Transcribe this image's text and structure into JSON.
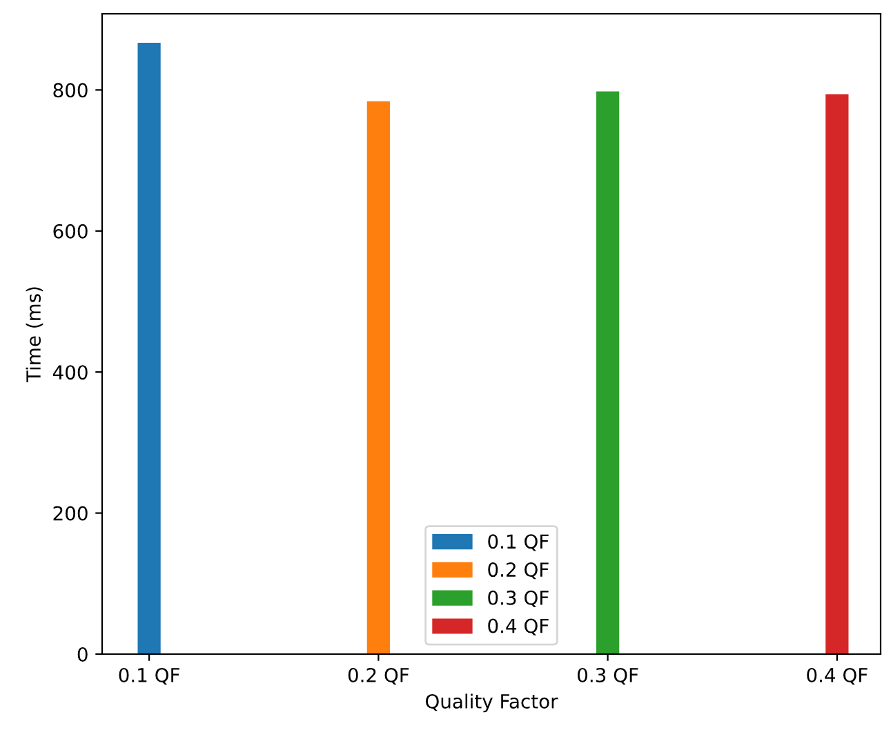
{
  "chart_data": {
    "type": "bar",
    "categories": [
      "0.1 QF",
      "0.2 QF",
      "0.3 QF",
      "0.4 QF"
    ],
    "xlabel": "Quality Factor",
    "ylabel": "Time (ms)",
    "ylim": [
      0,
      908
    ],
    "yticks": [
      0,
      200,
      400,
      600,
      800
    ],
    "series": [
      {
        "name": "0.1 QF",
        "color": "#1f77b4",
        "values": [
          867,
          null,
          null,
          null
        ]
      },
      {
        "name": "0.2 QF",
        "color": "#ff7f0e",
        "values": [
          null,
          784,
          null,
          null
        ]
      },
      {
        "name": "0.3 QF",
        "color": "#2ca02c",
        "values": [
          null,
          null,
          798,
          null
        ]
      },
      {
        "name": "0.4 QF",
        "color": "#d62728",
        "values": [
          null,
          null,
          null,
          794
        ]
      }
    ],
    "legend": "bottom",
    "grid": false
  }
}
